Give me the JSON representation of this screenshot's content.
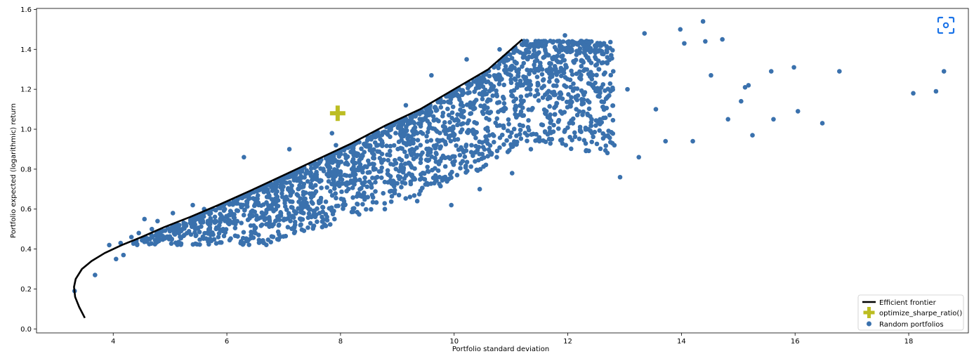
{
  "chart_data": {
    "type": "scatter",
    "title": "",
    "xlabel": "Portfolio standard deviation",
    "ylabel": "Portfolio expected (logarithmic) return",
    "xlim": [
      2.65,
      19.05
    ],
    "ylim": [
      -0.02,
      1.605
    ],
    "x_ticks": [
      4,
      6,
      8,
      10,
      12,
      14,
      16,
      18
    ],
    "x_tick_labels": [
      "4",
      "6",
      "8",
      "10",
      "12",
      "14",
      "16",
      "18"
    ],
    "y_ticks": [
      0.0,
      0.2,
      0.4,
      0.6,
      0.8,
      1.0,
      1.2,
      1.4,
      1.6
    ],
    "y_tick_labels": [
      "0.0",
      "0.2",
      "0.4",
      "0.6",
      "0.8",
      "1.0",
      "1.2",
      "1.4",
      "1.6"
    ],
    "grid": false,
    "legend_position": "bottom-right",
    "series": [
      {
        "name": "Efficient frontier",
        "type": "line",
        "color": "#000000",
        "x": [
          3.5,
          3.4,
          3.33,
          3.31,
          3.34,
          3.45,
          3.62,
          3.85,
          4.15,
          4.5,
          4.9,
          5.35,
          5.85,
          6.4,
          7.0,
          7.6,
          8.2,
          8.8,
          9.4,
          10.0,
          10.6,
          11.2
        ],
        "y": [
          0.055,
          0.11,
          0.16,
          0.21,
          0.25,
          0.3,
          0.34,
          0.38,
          0.42,
          0.46,
          0.51,
          0.56,
          0.62,
          0.69,
          0.77,
          0.85,
          0.93,
          1.02,
          1.1,
          1.2,
          1.3,
          1.45
        ]
      },
      {
        "name": "optimize_sharpe_ratio()",
        "type": "marker",
        "marker": "plus",
        "color": "#bcbd22",
        "x": [
          7.95
        ],
        "y": [
          1.08
        ]
      },
      {
        "name": "Random portfolios",
        "type": "scatter",
        "color": "#3a71ad",
        "x": [
          3.32,
          3.68,
          3.93,
          4.05,
          4.13,
          4.18,
          4.32,
          4.45,
          4.55,
          4.68,
          4.78,
          4.9,
          5.05,
          5.22,
          5.4,
          5.6,
          5.85,
          6.12,
          6.42,
          6.75,
          7.05,
          7.35,
          7.62,
          7.92,
          8.2,
          8.48,
          8.78,
          9.05,
          9.35,
          9.65,
          9.95,
          10.15,
          10.45,
          10.55,
          10.75,
          11.02,
          11.35,
          11.72,
          12.15,
          12.42,
          12.55,
          12.82,
          12.92,
          13.05,
          13.25,
          13.35,
          13.55,
          13.72,
          13.98,
          14.05,
          14.2,
          14.38,
          14.42,
          14.52,
          14.72,
          14.82,
          15.05,
          15.12,
          15.18,
          15.25,
          15.58,
          15.62,
          15.98,
          16.05,
          16.48,
          16.78,
          18.08,
          18.48,
          18.62,
          8.7,
          9.15,
          9.6,
          10.22,
          10.8,
          11.4,
          11.95,
          12.3,
          6.3,
          7.1,
          7.85
        ],
        "y": [
          0.19,
          0.27,
          0.42,
          0.35,
          0.43,
          0.37,
          0.46,
          0.48,
          0.55,
          0.5,
          0.54,
          0.46,
          0.58,
          0.5,
          0.62,
          0.6,
          0.46,
          0.64,
          0.68,
          0.53,
          0.76,
          0.58,
          0.64,
          0.92,
          0.8,
          0.66,
          0.6,
          0.76,
          0.64,
          0.73,
          0.62,
          0.84,
          0.7,
          0.94,
          0.86,
          0.78,
          0.9,
          0.95,
          1.1,
          1.05,
          1.3,
          0.92,
          0.76,
          1.2,
          0.86,
          1.48,
          1.1,
          0.94,
          1.5,
          1.43,
          0.94,
          1.54,
          1.44,
          1.27,
          1.45,
          1.05,
          1.14,
          1.21,
          1.22,
          0.97,
          1.29,
          1.05,
          1.31,
          1.09,
          1.03,
          1.29,
          1.18,
          1.19,
          1.29,
          0.95,
          1.12,
          1.27,
          1.35,
          1.4,
          1.42,
          1.47,
          1.3,
          0.86,
          0.9,
          0.98
        ]
      }
    ],
    "dense_cloud_note": ""
  },
  "legend": {
    "items": [
      {
        "label": "Efficient frontier"
      },
      {
        "label": "optimize_sharpe_ratio()"
      },
      {
        "label": "Random portfolios"
      }
    ]
  },
  "colors": {
    "scatter": "#3a71ad",
    "frontier": "#000000",
    "sharpe_marker": "#bcbd22",
    "scan_icon": "#1a73e8"
  },
  "toolbar": {
    "scan_icon": "screen-scan-icon"
  }
}
